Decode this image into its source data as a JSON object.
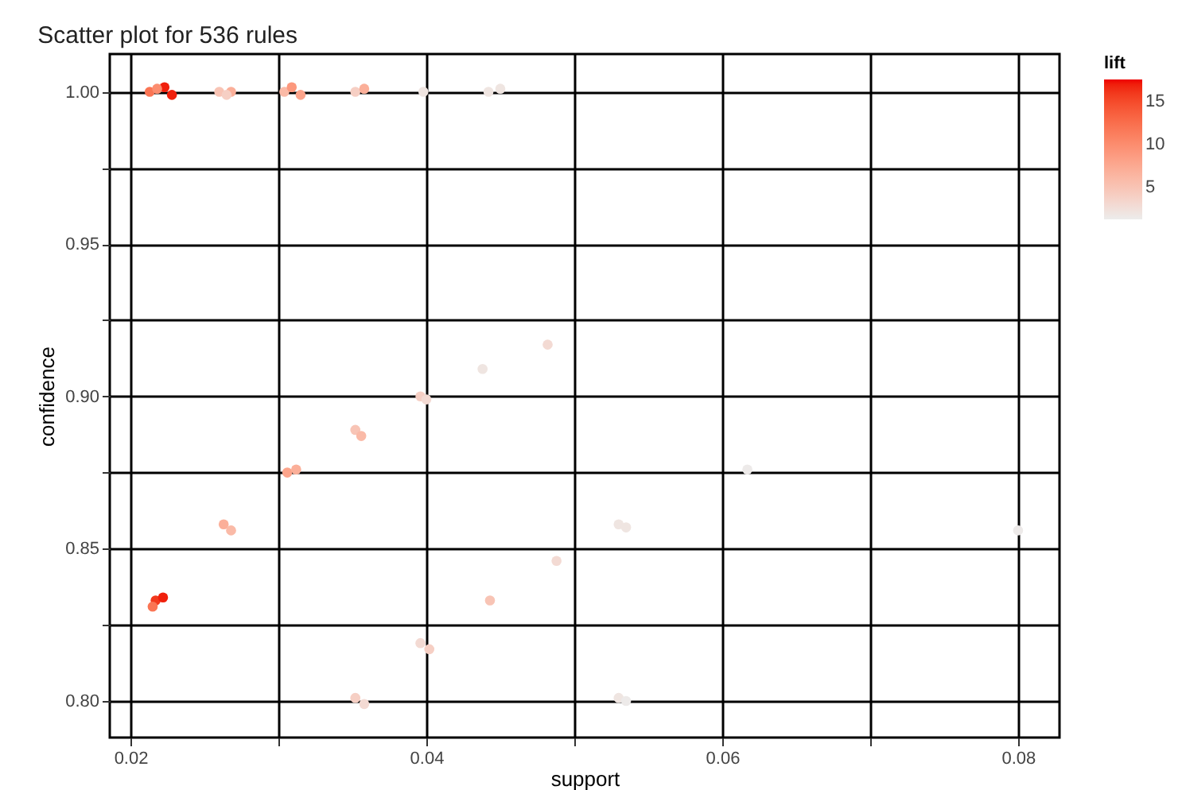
{
  "chart_data": {
    "type": "scatter",
    "title": "Scatter plot for 536 rules",
    "xlabel": "support",
    "ylabel": "confidence",
    "legend_title": "lift",
    "x": [
      0.0213,
      0.0223,
      0.0228,
      0.0218,
      0.026,
      0.0268,
      0.0265,
      0.0304,
      0.0309,
      0.0315,
      0.0352,
      0.0358,
      0.0398,
      0.0442,
      0.045,
      0.0482,
      0.0438,
      0.0396,
      0.04,
      0.0352,
      0.0356,
      0.0306,
      0.0312,
      0.0263,
      0.0268,
      0.0217,
      0.0222,
      0.0215,
      0.0488,
      0.0443,
      0.0396,
      0.0402,
      0.0352,
      0.0358,
      0.053,
      0.0535,
      0.053,
      0.0535,
      0.0617,
      0.08
    ],
    "values": [
      1.0,
      1.0015,
      0.999,
      1.001,
      1.0,
      1.0,
      0.999,
      1.0,
      1.0015,
      0.999,
      1.0,
      1.001,
      1.0,
      1.0,
      1.001,
      0.917,
      0.909,
      0.9,
      0.899,
      0.889,
      0.887,
      0.875,
      0.876,
      0.858,
      0.856,
      0.833,
      0.834,
      0.831,
      0.846,
      0.833,
      0.819,
      0.817,
      0.801,
      0.799,
      0.858,
      0.857,
      0.801,
      0.8,
      0.876,
      0.856
    ],
    "cvalues": [
      12,
      17,
      17,
      10,
      5,
      7,
      4,
      6,
      9,
      8,
      4,
      7,
      2,
      2,
      2,
      3,
      2,
      4,
      3,
      5,
      6,
      8,
      7,
      7,
      6,
      16,
      17,
      12,
      3,
      5,
      3,
      4,
      4,
      3,
      2,
      2,
      2,
      1.5,
      1.5,
      1.5
    ],
    "clim": [
      1.3,
      17.6
    ],
    "cticks": [
      5,
      10,
      15
    ],
    "xlim": [
      0.0186,
      0.0828
    ],
    "xticks": [
      0.02,
      {
        "value": 0.03,
        "label": null
      },
      0.04,
      {
        "value": 0.05,
        "label": null
      },
      0.06,
      {
        "value": 0.07,
        "label": null
      },
      0.08
    ],
    "ylim": [
      0.788,
      1.0124
    ],
    "yticks": [
      {
        "value": 0.8,
        "label": "0.80"
      },
      {
        "value": 0.825,
        "label": null
      },
      0.85,
      {
        "value": 0.875,
        "label": null
      },
      {
        "value": 0.9,
        "label": "0.90"
      },
      {
        "value": 0.925,
        "label": null
      },
      0.95,
      {
        "value": 0.975,
        "label": null
      },
      {
        "value": 1.0,
        "label": "1.00"
      }
    ],
    "grid": true,
    "marker": "circle"
  }
}
